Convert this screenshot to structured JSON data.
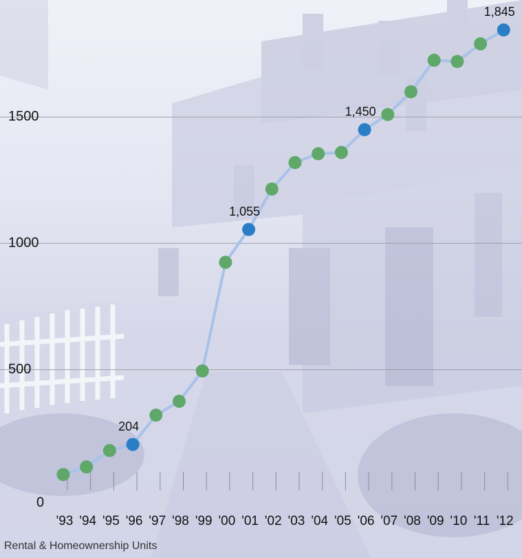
{
  "caption": "Rental & Homeownership Units",
  "colors": {
    "line": "#a8c2e8",
    "marker_default": "#5fa86a",
    "marker_highlight": "#2a7ec6",
    "gridline": "#9a9ca8"
  },
  "chart_data": {
    "type": "line",
    "title": "",
    "xlabel": "",
    "ylabel": "",
    "categories": [
      "'93",
      "'94",
      "'95",
      "'96",
      "'97",
      "'98",
      "'99",
      "'00",
      "'01",
      "'02",
      "'03",
      "'04",
      "'05",
      "'06",
      "'07",
      "'08",
      "'09",
      "'10",
      "'11",
      "'12"
    ],
    "series": [
      {
        "values": [
          85,
          115,
          180,
          204,
          320,
          375,
          495,
          925,
          1055,
          1215,
          1320,
          1355,
          1360,
          1450,
          1510,
          1600,
          1725,
          1720,
          1790,
          1845
        ]
      }
    ],
    "highlighted": [
      {
        "category": "'96",
        "label": "204"
      },
      {
        "category": "'01",
        "label": "1,055"
      },
      {
        "category": "'06",
        "label": "1,450"
      },
      {
        "category": "'12",
        "label": "1,845"
      }
    ],
    "ylim": [
      0,
      1900
    ],
    "yticks": [
      {
        "value": 0,
        "label": "0"
      },
      {
        "value": 500,
        "label": "500"
      },
      {
        "value": 1000,
        "label": "1000"
      },
      {
        "value": 1500,
        "label": "1500"
      }
    ],
    "grid": true,
    "legend": "none"
  }
}
